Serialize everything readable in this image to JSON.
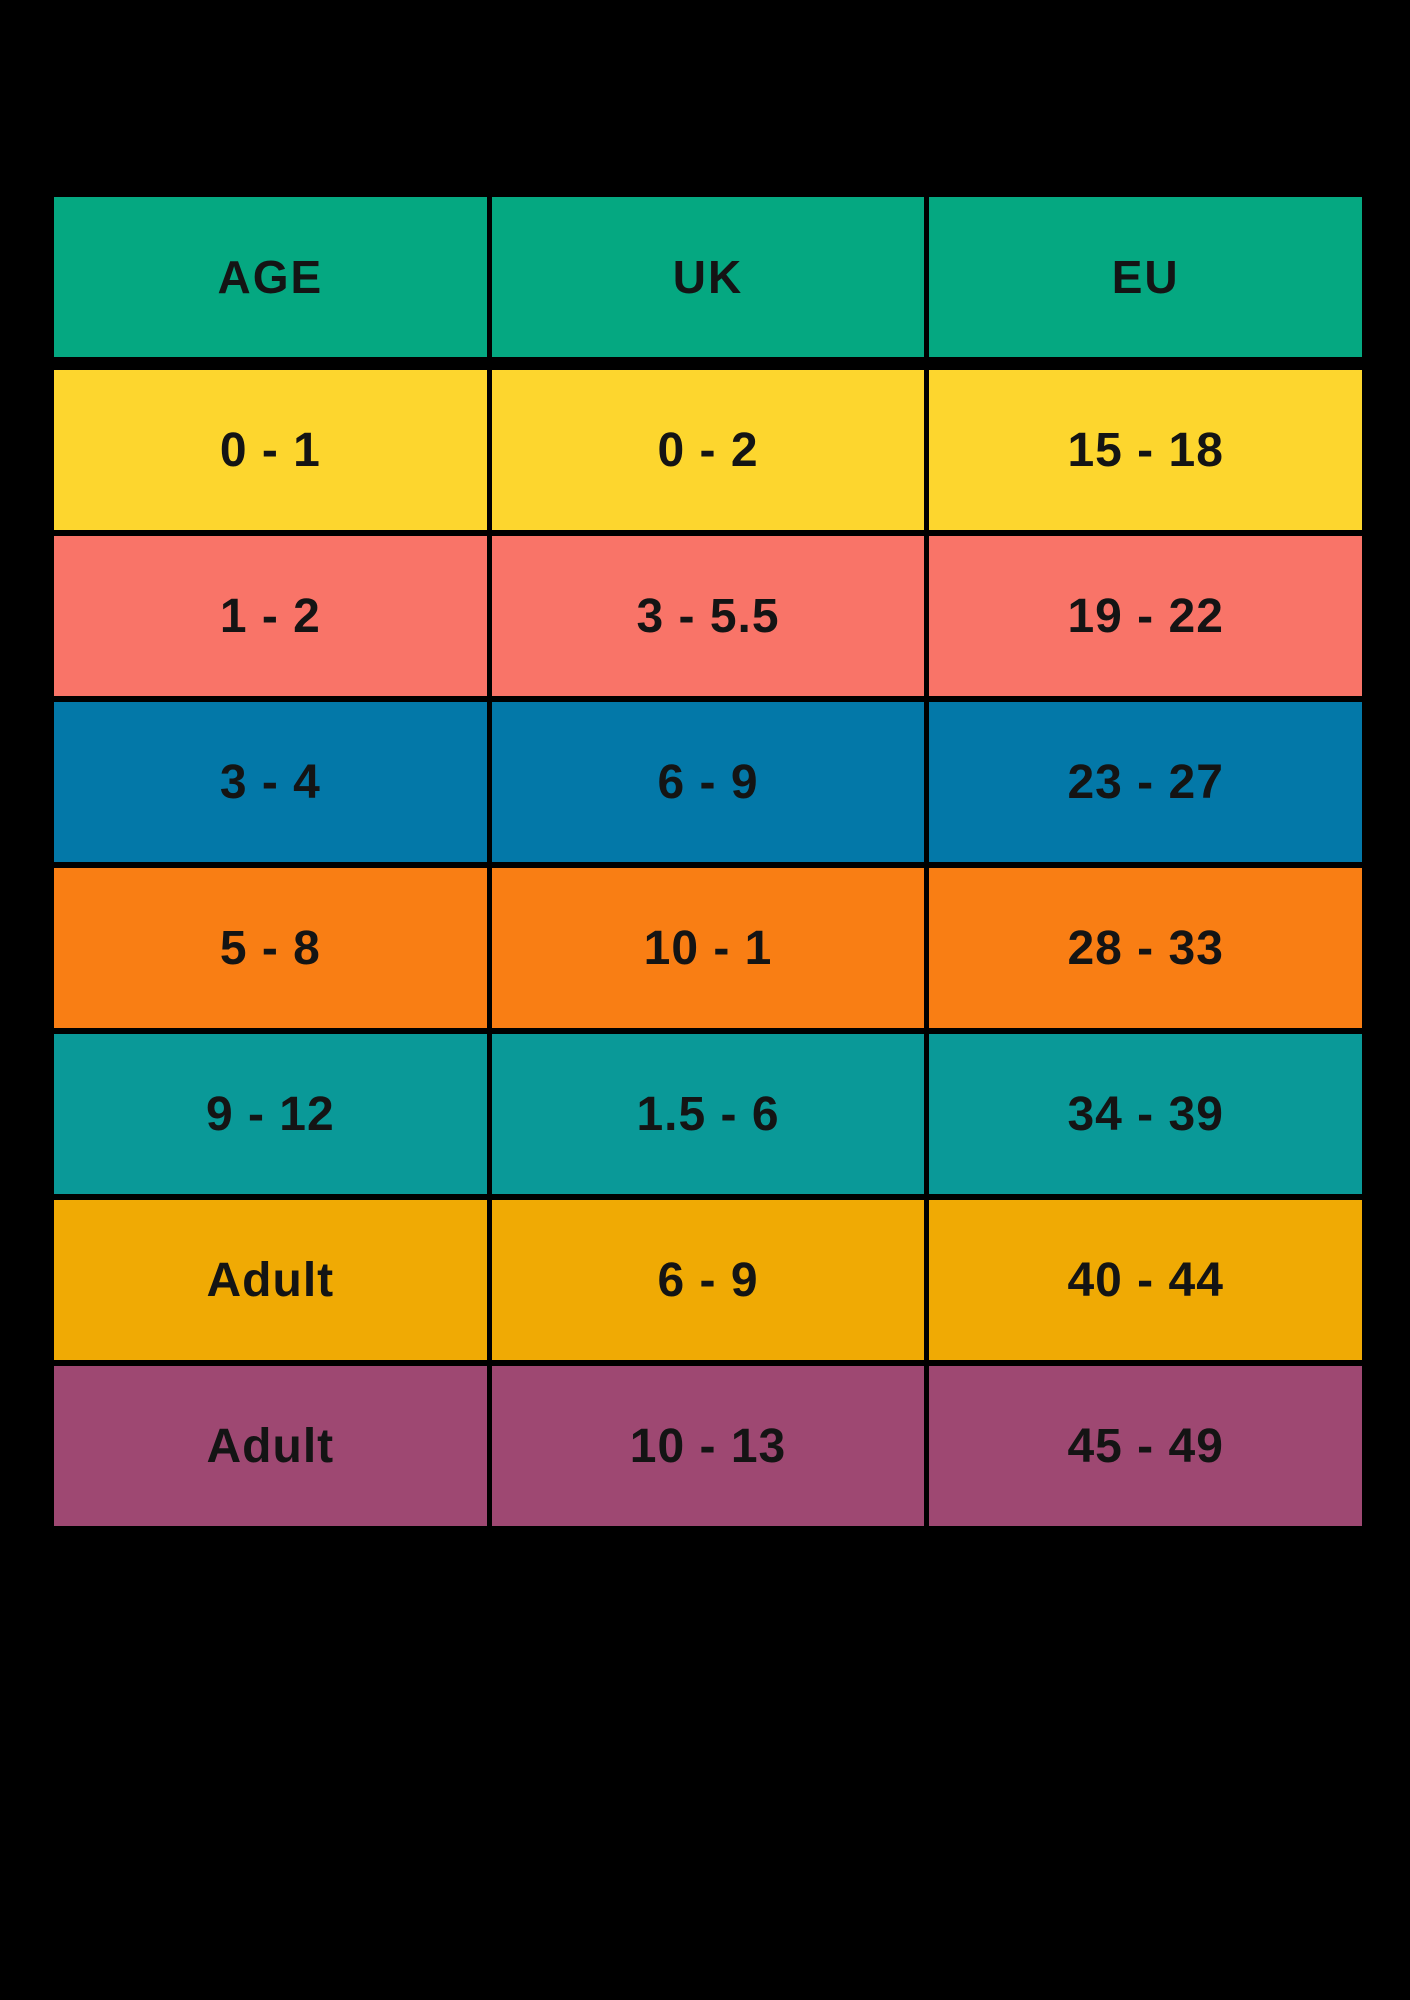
{
  "chart_data": {
    "type": "table",
    "title": "",
    "columns": [
      "AGE",
      "UK",
      "EU"
    ],
    "rows": [
      [
        "0 - 1",
        "0 - 2",
        "15 - 18"
      ],
      [
        "1 - 2",
        "3 - 5.5",
        "19 - 22"
      ],
      [
        "3 - 4",
        "6 - 9",
        "23 - 27"
      ],
      [
        "5 - 8",
        "10 - 1",
        "28 - 33"
      ],
      [
        "9 - 12",
        "1.5 - 6",
        "34 - 39"
      ],
      [
        "Adult",
        "6 - 9",
        "40 - 44"
      ],
      [
        "Adult",
        "10 - 13",
        "45 - 49"
      ]
    ],
    "header_color": "#05a881",
    "row_colors": [
      "#fdd62e",
      "#f97468",
      "#0378a8",
      "#f97e14",
      "#0a9998",
      "#f0aa04",
      "#9e4872"
    ],
    "text_color": "#141414",
    "background_color": "#000000",
    "grid": "thin black separators between cells, thicker separator under header"
  }
}
